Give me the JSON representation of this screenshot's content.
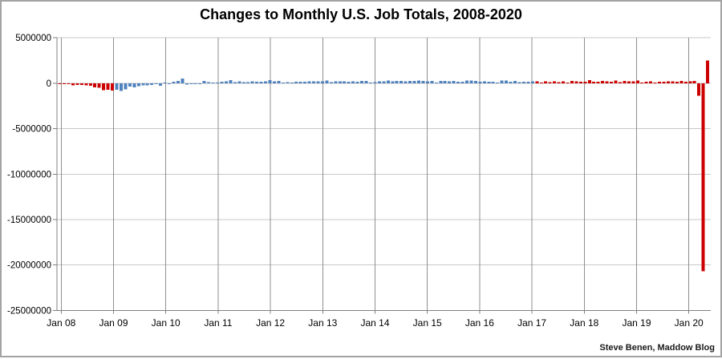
{
  "page": {
    "attribution": "Steve Benen, Maddow Blog"
  },
  "chart_data": {
    "type": "bar",
    "title": "Changes to Monthly U.S. Job Totals, 2008-2020",
    "xlabel": "",
    "ylabel": "",
    "x_tick_labels": [
      "Jan 08",
      "Jan 09",
      "Jan 10",
      "Jan 11",
      "Jan 12",
      "Jan 13",
      "Jan 14",
      "Jan 15",
      "Jan 16",
      "Jan 17",
      "Jan 18",
      "Jan 19",
      "Jan 20"
    ],
    "y_tick_labels": [
      "5000000",
      "0",
      "-5000000",
      "-10000000",
      "-15000000",
      "-20000000",
      "-25000000"
    ],
    "y_tick_values": [
      5000000,
      0,
      -5000000,
      -10000000,
      -15000000,
      -20000000,
      -25000000
    ],
    "ylim": [
      -25000000,
      5000000
    ],
    "grid": true,
    "legend_position": "none",
    "x_range": "monthly bars, Jan 2008 through May 2020 (149 bars)",
    "values_unit": "net monthly change in U.S. jobs, thousands",
    "values_thousands": [
      -17,
      -83,
      -88,
      -214,
      -182,
      -172,
      -210,
      -259,
      -452,
      -474,
      -765,
      -697,
      -798,
      -701,
      -826,
      -684,
      -354,
      -467,
      -327,
      -216,
      -227,
      -198,
      -6,
      -283,
      18,
      -50,
      156,
      251,
      516,
      -122,
      -61,
      -42,
      -57,
      241,
      137,
      71,
      70,
      168,
      212,
      322,
      102,
      217,
      106,
      122,
      221,
      183,
      164,
      196,
      360,
      226,
      243,
      96,
      110,
      88,
      160,
      150,
      161,
      225,
      203,
      214,
      197,
      280,
      141,
      203,
      199,
      201,
      149,
      202,
      164,
      237,
      274,
      84,
      144,
      222,
      203,
      304,
      229,
      267,
      243,
      203,
      271,
      243,
      321,
      256,
      201,
      266,
      85,
      251,
      273,
      228,
      277,
      150,
      149,
      295,
      280,
      271,
      168,
      233,
      186,
      153,
      43,
      297,
      291,
      176,
      249,
      124,
      164,
      155,
      216,
      232,
      50,
      207,
      145,
      210,
      139,
      208,
      14,
      271,
      216,
      175,
      176,
      324,
      155,
      175,
      268,
      208,
      165,
      286,
      119,
      277,
      196,
      227,
      312,
      56,
      153,
      216,
      62,
      178,
      166,
      219,
      193,
      152,
      261,
      184,
      214,
      251,
      -1373,
      -20687,
      2509
    ],
    "bar_colors": {
      "red": "#CC0000",
      "blue": "#4F81BD"
    },
    "color_segments": [
      {
        "start_month": "Jan 2008",
        "end_month": "Jan 2009",
        "start_index": 0,
        "end_index": 12,
        "color": "red"
      },
      {
        "start_month": "Feb 2009",
        "end_month": "Jan 2017",
        "start_index": 13,
        "end_index": 108,
        "color": "blue"
      },
      {
        "start_month": "Feb 2017",
        "end_month": "May 2020",
        "start_index": 109,
        "end_index": 148,
        "color": "red"
      }
    ],
    "line_colors": {
      "h_gridline": "#c8c8c8",
      "v_gridline": "#8f8f8f",
      "axis": "#808080",
      "zero_line": "#c0c0c0"
    }
  }
}
